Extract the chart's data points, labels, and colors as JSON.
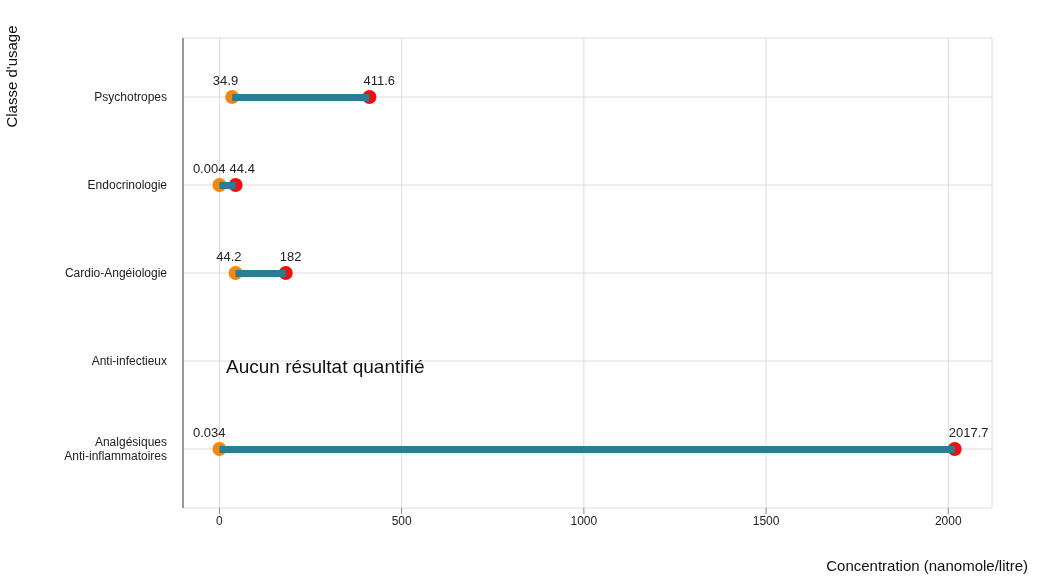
{
  "chart_data": {
    "type": "bar",
    "orientation": "horizontal",
    "xlabel": "Concentration (nanomole/litre)",
    "ylabel": "Classe d'usage",
    "categories": [
      "Psychotropes",
      "Endocrinologie",
      "Cardio-Angéiologie",
      "Anti-infectieux",
      "Analgésiques\nAnti-inflammatoires"
    ],
    "series": [
      {
        "color": "#2b7d93",
        "base": [
          34.9,
          0.004,
          44.2,
          null,
          0.034
        ],
        "values": [
          376.7,
          44.396,
          137.8,
          null,
          2017.666
        ]
      },
      {
        "type": "scatter",
        "color": "#f5870f",
        "values": [
          34.9,
          0.004,
          44.2,
          null,
          0.034
        ],
        "value_labels": [
          "34.9",
          "0.004",
          "44.2",
          null,
          "0.034"
        ]
      },
      {
        "type": "scatter",
        "color": "#f01010",
        "values": [
          411.6,
          44.4,
          182,
          null,
          2017.7
        ],
        "value_labels": [
          "411.6",
          "44.4",
          "182",
          null,
          "2017.7"
        ]
      }
    ],
    "annotations": [
      "Aucun résultat quantifié"
    ],
    "xlim": [
      -100,
      2120
    ],
    "xticks": [
      0,
      500,
      1000,
      1500,
      2000
    ],
    "grid": true,
    "marker": "circle"
  }
}
